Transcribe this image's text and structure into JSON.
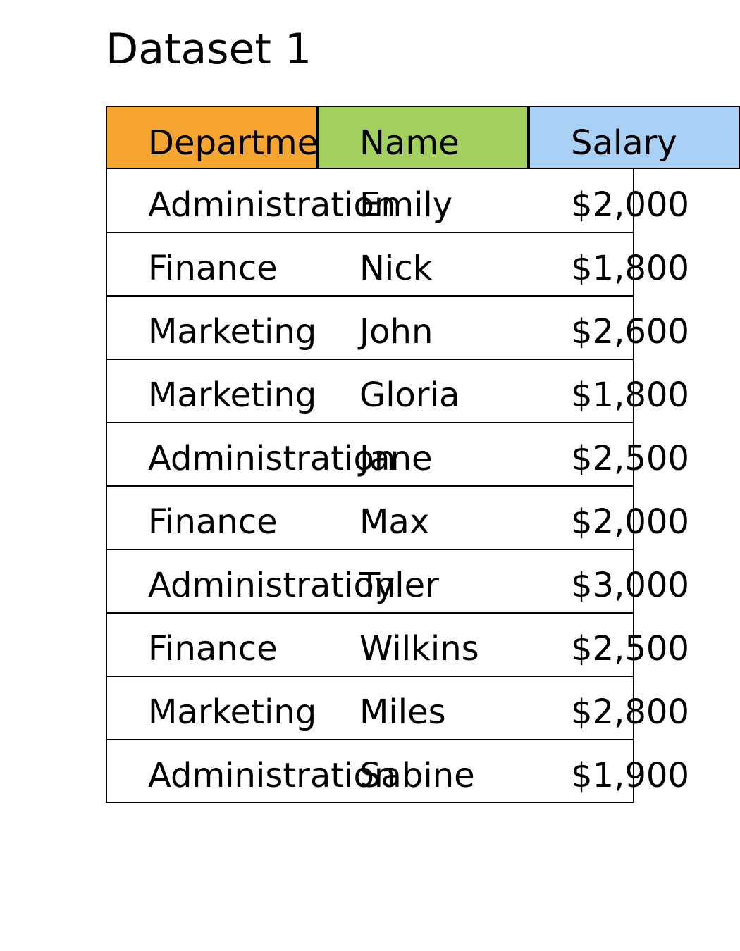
{
  "title": "Dataset 1",
  "colors": {
    "header_department": "#f7a531",
    "header_name": "#a3d05e",
    "header_salary": "#a9d0f5"
  },
  "table": {
    "headers": [
      "Department",
      "Name",
      "Salary"
    ],
    "rows": [
      [
        "Administration",
        "Emily",
        "$2,000"
      ],
      [
        "Finance",
        "Nick",
        "$1,800"
      ],
      [
        "Marketing",
        "John",
        "$2,600"
      ],
      [
        "Marketing",
        "Gloria",
        "$1,800"
      ],
      [
        "Administration",
        "Jane",
        "$2,500"
      ],
      [
        "Finance",
        "Max",
        "$2,000"
      ],
      [
        "Administration",
        "Tyler",
        "$3,000"
      ],
      [
        "Finance",
        "Wilkins",
        "$2,500"
      ],
      [
        "Marketing",
        "Miles",
        "$2,800"
      ],
      [
        "Administration",
        "Sabine",
        "$1,900"
      ]
    ]
  }
}
